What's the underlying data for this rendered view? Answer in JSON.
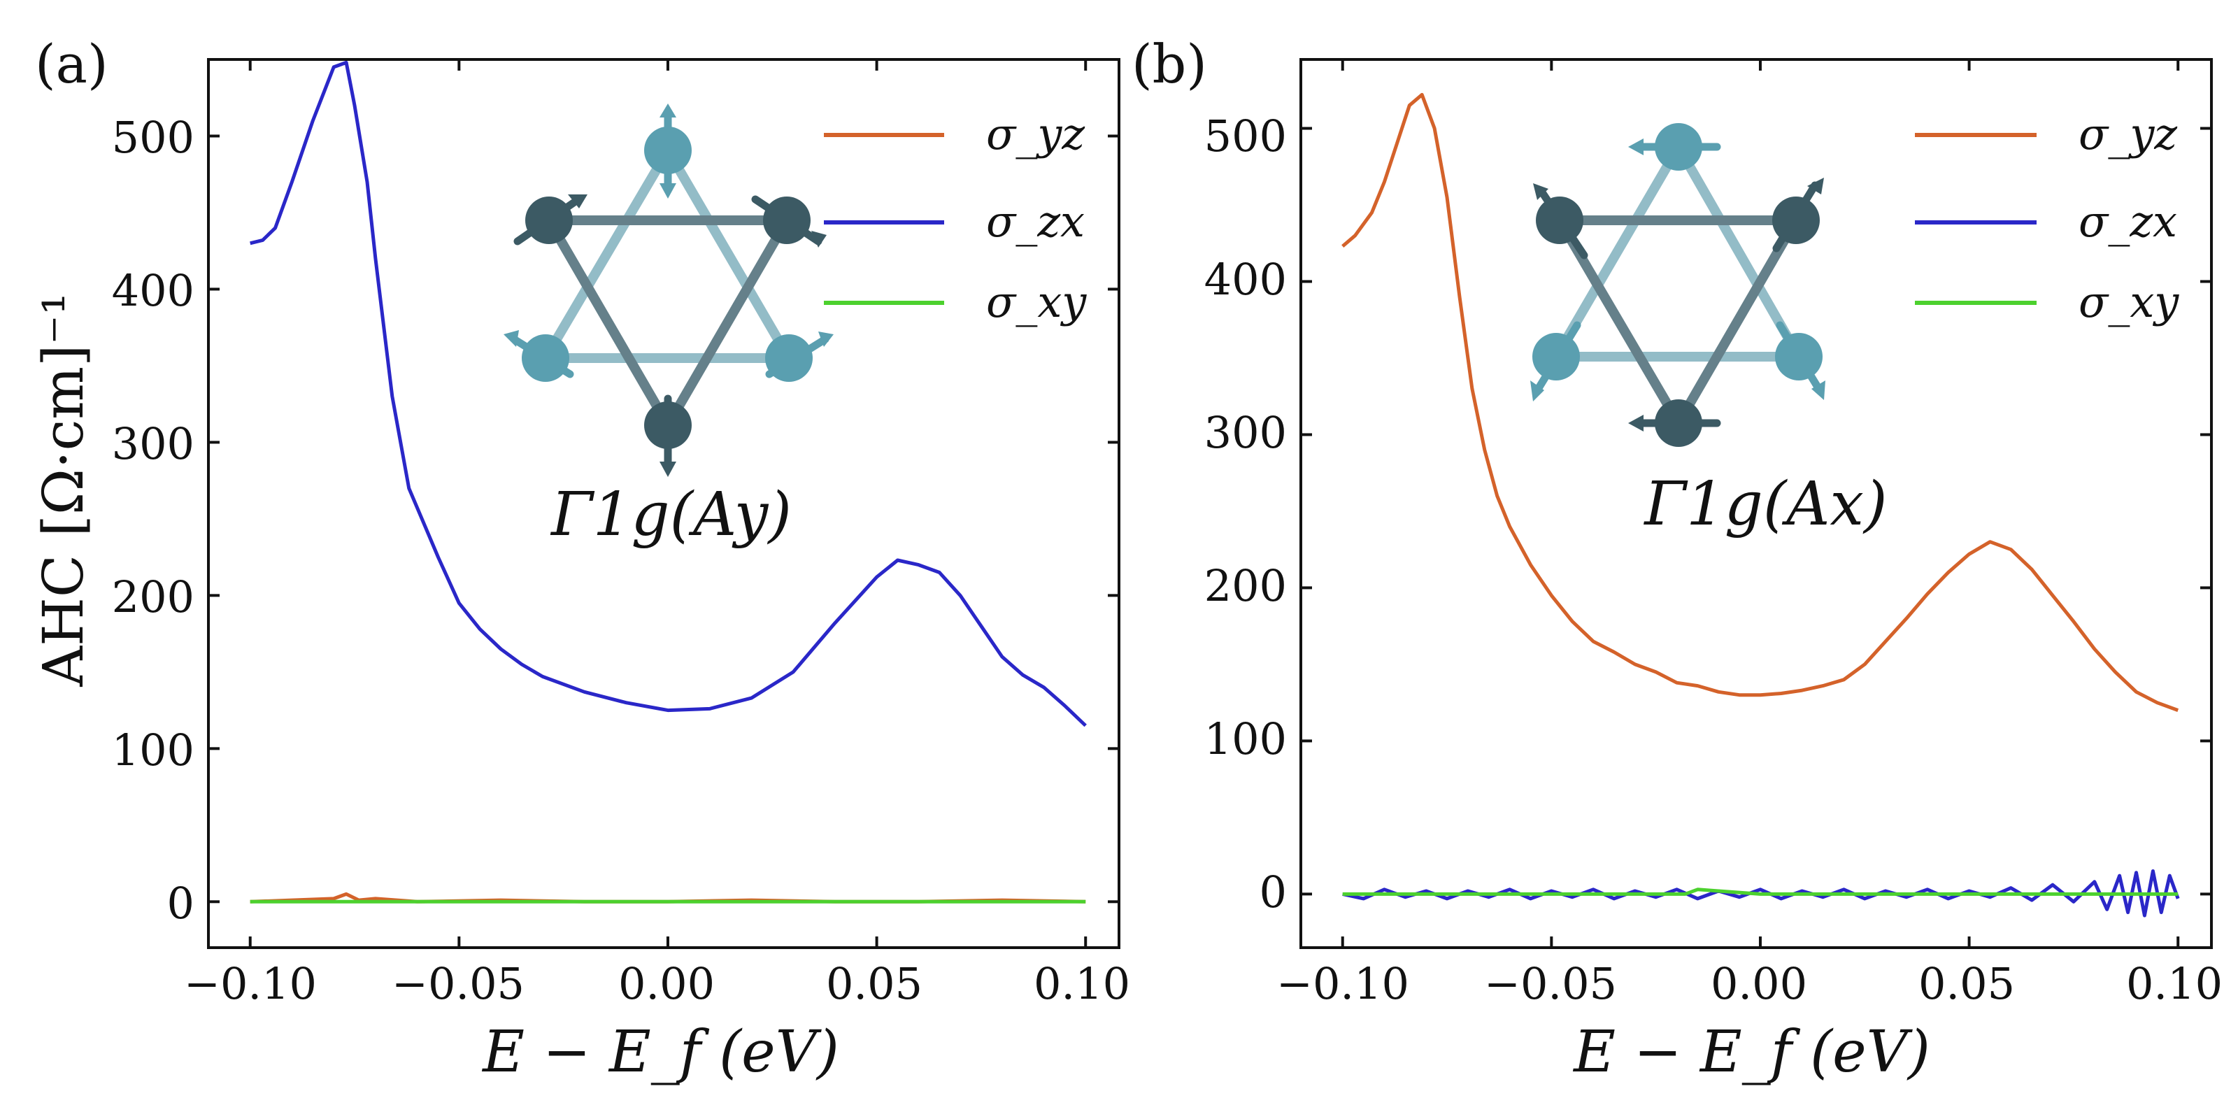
{
  "colors": {
    "yz": "#d4622a",
    "zx": "#2a27c8",
    "xy": "#4cd12e",
    "lightAtom": "#5a9fb0",
    "darkAtom": "#3c5a64",
    "lightBond": "#93bcc7",
    "darkBond": "#65808a"
  },
  "chart_data": [
    {
      "type": "line",
      "panel_label": "(a)",
      "xlabel": "E − E_f (eV)",
      "ylabel": "AHC [Ω·cm]⁻¹",
      "xlim": [
        -0.11,
        0.108
      ],
      "ylim": [
        -30,
        550
      ],
      "xticks": [
        -0.1,
        -0.05,
        0.0,
        0.05,
        0.1
      ],
      "xtick_labels": [
        "−0.10",
        "−0.05",
        "0.00",
        "0.05",
        "0.10"
      ],
      "yticks": [
        0,
        100,
        200,
        300,
        400,
        500
      ],
      "ytick_labels": [
        "0",
        "100",
        "200",
        "300",
        "400",
        "500"
      ],
      "legend": [
        "σ_yz",
        "σ_zx",
        "σ_xy"
      ],
      "inset_label": "Γ1g(Ay)",
      "series": [
        {
          "name": "σ_yz",
          "key": "yz",
          "x": [
            -0.1,
            -0.09,
            -0.08,
            -0.077,
            -0.074,
            -0.07,
            -0.06,
            -0.04,
            -0.02,
            0.0,
            0.02,
            0.04,
            0.06,
            0.08,
            0.1
          ],
          "y": [
            0,
            1,
            2,
            5,
            1,
            2,
            0,
            1,
            0,
            0,
            1,
            0,
            0,
            1,
            0
          ]
        },
        {
          "name": "σ_zx",
          "key": "zx",
          "x": [
            -0.1,
            -0.097,
            -0.094,
            -0.09,
            -0.085,
            -0.08,
            -0.077,
            -0.075,
            -0.072,
            -0.07,
            -0.066,
            -0.062,
            -0.055,
            -0.05,
            -0.045,
            -0.04,
            -0.035,
            -0.03,
            -0.02,
            -0.01,
            0.0,
            0.01,
            0.02,
            0.03,
            0.04,
            0.05,
            0.055,
            0.06,
            0.065,
            0.07,
            0.075,
            0.08,
            0.085,
            0.09,
            0.095,
            0.1
          ],
          "y": [
            430,
            432,
            440,
            470,
            510,
            545,
            548,
            520,
            470,
            420,
            330,
            270,
            225,
            195,
            178,
            165,
            155,
            147,
            137,
            130,
            125,
            126,
            133,
            150,
            182,
            212,
            223,
            220,
            215,
            200,
            180,
            160,
            148,
            140,
            128,
            115
          ]
        },
        {
          "name": "σ_xy",
          "key": "xy",
          "x": [
            -0.1,
            -0.05,
            0.0,
            0.05,
            0.1
          ],
          "y": [
            0,
            0,
            0,
            0,
            0
          ]
        }
      ]
    },
    {
      "type": "line",
      "panel_label": "(b)",
      "xlabel": "E − E_f (eV)",
      "ylabel": "",
      "xlim": [
        -0.11,
        0.108
      ],
      "ylim": [
        -35,
        545
      ],
      "xticks": [
        -0.1,
        -0.05,
        0.0,
        0.05,
        0.1
      ],
      "xtick_labels": [
        "−0.10",
        "−0.05",
        "0.00",
        "0.05",
        "0.10"
      ],
      "yticks": [
        0,
        100,
        200,
        300,
        400,
        500
      ],
      "ytick_labels": [
        "0",
        "100",
        "200",
        "300",
        "400",
        "500"
      ],
      "legend": [
        "σ_yz",
        "σ_zx",
        "σ_xy"
      ],
      "inset_label": "Γ1g(Ax)",
      "series": [
        {
          "name": "σ_yz",
          "key": "yz",
          "x": [
            -0.1,
            -0.097,
            -0.093,
            -0.09,
            -0.087,
            -0.084,
            -0.081,
            -0.078,
            -0.075,
            -0.072,
            -0.069,
            -0.066,
            -0.063,
            -0.06,
            -0.055,
            -0.05,
            -0.045,
            -0.04,
            -0.035,
            -0.03,
            -0.025,
            -0.02,
            -0.015,
            -0.01,
            -0.005,
            0.0,
            0.005,
            0.01,
            0.015,
            0.02,
            0.025,
            0.03,
            0.035,
            0.04,
            0.045,
            0.05,
            0.055,
            0.06,
            0.065,
            0.07,
            0.075,
            0.08,
            0.085,
            0.09,
            0.095,
            0.1
          ],
          "y": [
            423,
            430,
            445,
            465,
            490,
            515,
            522,
            500,
            455,
            390,
            330,
            290,
            260,
            240,
            215,
            195,
            178,
            165,
            158,
            150,
            145,
            138,
            136,
            132,
            130,
            130,
            131,
            133,
            136,
            140,
            150,
            165,
            180,
            196,
            210,
            222,
            230,
            225,
            212,
            195,
            178,
            160,
            145,
            132,
            125,
            120
          ]
        },
        {
          "name": "σ_zx",
          "key": "zx",
          "x": [
            -0.1,
            -0.095,
            -0.09,
            -0.085,
            -0.08,
            -0.075,
            -0.07,
            -0.065,
            -0.06,
            -0.055,
            -0.05,
            -0.045,
            -0.04,
            -0.035,
            -0.03,
            -0.025,
            -0.02,
            -0.015,
            -0.01,
            -0.005,
            0.0,
            0.005,
            0.01,
            0.015,
            0.02,
            0.025,
            0.03,
            0.035,
            0.04,
            0.045,
            0.05,
            0.055,
            0.06,
            0.065,
            0.07,
            0.075,
            0.08,
            0.083,
            0.086,
            0.088,
            0.09,
            0.092,
            0.094,
            0.096,
            0.098,
            0.1
          ],
          "y": [
            0,
            -3,
            3,
            -2,
            2,
            -3,
            2,
            -2,
            3,
            -3,
            2,
            -2,
            3,
            -3,
            2,
            -2,
            3,
            -3,
            2,
            -2,
            3,
            -3,
            2,
            -2,
            3,
            -3,
            2,
            -2,
            3,
            -3,
            2,
            -2,
            4,
            -4,
            6,
            -5,
            8,
            -10,
            12,
            -12,
            14,
            -14,
            15,
            -12,
            12,
            -3
          ]
        },
        {
          "name": "σ_xy",
          "key": "xy",
          "x": [
            -0.1,
            -0.05,
            -0.018,
            -0.015,
            0.0,
            0.05,
            0.1
          ],
          "y": [
            0,
            0,
            0,
            3,
            0,
            0,
            0
          ]
        }
      ]
    }
  ]
}
